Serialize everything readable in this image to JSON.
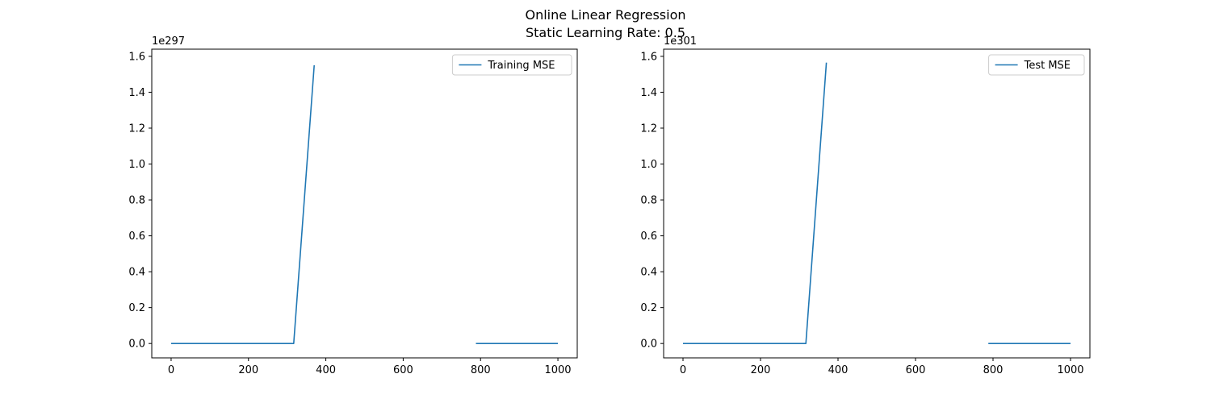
{
  "figure": {
    "title_line1": "Online Linear Regression",
    "title_line2": "Static Learning Rate: 0.5"
  },
  "chart_data": [
    {
      "type": "line",
      "title": "",
      "xlabel": "",
      "ylabel": "",
      "y_offset_label": "1e297",
      "xlim": [
        -50,
        1050
      ],
      "ylim": [
        -0.08,
        1.64
      ],
      "xticks": [
        0,
        200,
        400,
        600,
        800,
        1000
      ],
      "yticks": [
        0.0,
        0.2,
        0.4,
        0.6,
        0.8,
        1.0,
        1.2,
        1.4,
        1.6
      ],
      "grid": false,
      "legend_position": "top-right",
      "series": [
        {
          "name": "Training MSE",
          "color": "#1f77b4",
          "segments": [
            [
              [
                0,
                0
              ],
              [
                317,
                0
              ],
              [
                370,
                1.55
              ]
            ],
            [
              [
                788,
                0
              ],
              [
                1000,
                0
              ]
            ]
          ]
        }
      ]
    },
    {
      "type": "line",
      "title": "",
      "xlabel": "",
      "ylabel": "",
      "y_offset_label": "1e301",
      "xlim": [
        -50,
        1050
      ],
      "ylim": [
        -0.08,
        1.64
      ],
      "xticks": [
        0,
        200,
        400,
        600,
        800,
        1000
      ],
      "yticks": [
        0.0,
        0.2,
        0.4,
        0.6,
        0.8,
        1.0,
        1.2,
        1.4,
        1.6
      ],
      "grid": false,
      "legend_position": "top-right",
      "series": [
        {
          "name": "Test MSE",
          "color": "#1f77b4",
          "segments": [
            [
              [
                0,
                0
              ],
              [
                317,
                0
              ],
              [
                370,
                1.565
              ]
            ],
            [
              [
                788,
                0
              ],
              [
                1000,
                0
              ]
            ]
          ]
        }
      ]
    }
  ]
}
